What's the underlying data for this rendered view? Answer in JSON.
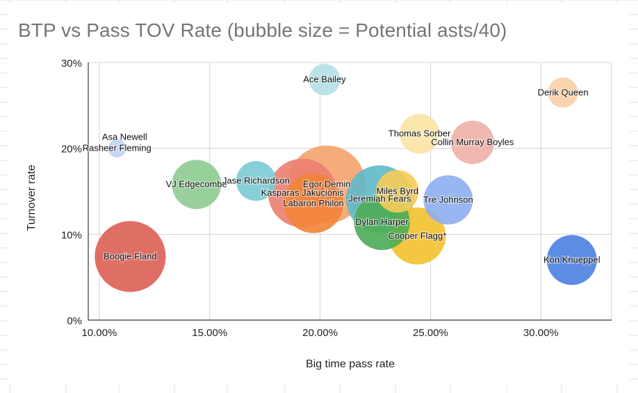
{
  "chart_data": {
    "type": "bubble",
    "title": "BTP vs Pass TOV Rate (bubble size = Potential asts/40)",
    "xlabel": "Big time pass rate",
    "ylabel": "Turnover rate",
    "xlim": [
      9.5,
      33.2
    ],
    "ylim": [
      0,
      30
    ],
    "x_ticks": [
      10,
      15,
      20,
      25,
      30
    ],
    "x_tick_labels": [
      "10.00%",
      "15.00%",
      "20.00%",
      "25.00%",
      "30.00%"
    ],
    "y_ticks": [
      0,
      10,
      20,
      30
    ],
    "y_tick_labels": [
      "0%",
      "10%",
      "20%",
      "30%"
    ],
    "grid": true,
    "points": [
      {
        "label": "Ace Bailey",
        "x": 20.2,
        "y": 28.0,
        "size": 2.6,
        "color": "#b3e0e6"
      },
      {
        "label": "Derik Queen",
        "x": 31.0,
        "y": 26.5,
        "size": 2.4,
        "color": "#f9cfa5"
      },
      {
        "label": "Asa Newell",
        "x": 10.8,
        "y": 20.0,
        "size": 0.8,
        "color": "#c6d7f5"
      },
      {
        "label": "Rasheer Fleming",
        "x": 10.8,
        "y": 20.0,
        "size": 0.9,
        "color": "#c6d7f5"
      },
      {
        "label": "Thomas Sorber",
        "x": 24.5,
        "y": 21.7,
        "size": 4.2,
        "color": "#fbe3a3"
      },
      {
        "label": "Collin Murray Boyles",
        "x": 26.9,
        "y": 20.7,
        "size": 5.0,
        "color": "#f0b0a8"
      },
      {
        "label": "VJ Edgecombe",
        "x": 14.4,
        "y": 15.8,
        "size": 6.4,
        "color": "#8dcb91"
      },
      {
        "label": "Jase Richardson",
        "x": 17.1,
        "y": 16.2,
        "size": 4.2,
        "color": "#7bcbd5"
      },
      {
        "label": "Egor Demin",
        "x": 20.3,
        "y": 15.8,
        "size": 16.0,
        "color": "#f5a36c"
      },
      {
        "label": "Kasparas Jakucionis",
        "x": 19.2,
        "y": 14.8,
        "size": 12.5,
        "color": "#eb8070"
      },
      {
        "label": "Labaron Philon",
        "x": 19.7,
        "y": 13.6,
        "size": 9.4,
        "color": "#f2843a"
      },
      {
        "label": "Miles Byrd",
        "x": 23.5,
        "y": 15.0,
        "size": 4.8,
        "color": "#f6cc55"
      },
      {
        "label": "Jeremiah Fears",
        "x": 22.7,
        "y": 14.1,
        "size": 12.0,
        "color": "#5eb9c9"
      },
      {
        "label": "Tre Johnson",
        "x": 25.8,
        "y": 14.0,
        "size": 6.4,
        "color": "#8daeef"
      },
      {
        "label": "Dylan Harper",
        "x": 22.8,
        "y": 11.4,
        "size": 8.2,
        "color": "#4cac55"
      },
      {
        "label": "Cooper Flagg*",
        "x": 24.4,
        "y": 9.8,
        "size": 8.6,
        "color": "#f3c12f"
      },
      {
        "label": "Boogie Fland",
        "x": 11.4,
        "y": 7.4,
        "size": 13.3,
        "color": "#dc5f54"
      },
      {
        "label": "Kon Knueppel",
        "x": 31.4,
        "y": 7.0,
        "size": 6.6,
        "color": "#4a7fe0"
      }
    ]
  }
}
